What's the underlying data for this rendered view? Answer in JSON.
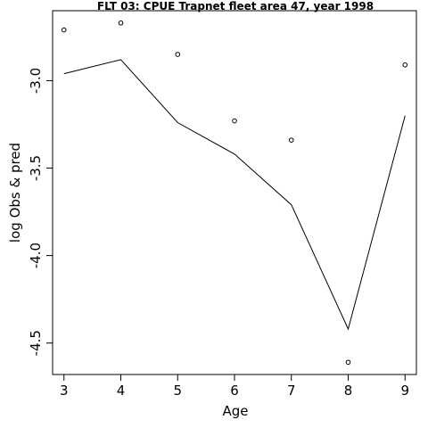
{
  "chart_data": {
    "type": "line",
    "title": "FLT 03: CPUE Trapnet fleet area 47, year 1998",
    "xlabel": "Age",
    "ylabel": "log Obs & pred",
    "xlim": [
      2.8,
      9.2
    ],
    "ylim": [
      -4.68,
      -2.6
    ],
    "x_ticks": [
      "3",
      "4",
      "5",
      "6",
      "7",
      "8",
      "9"
    ],
    "y_ticks": [
      "-3.0",
      "-3.5",
      "-4.0",
      "-4.5"
    ],
    "grid": false,
    "series": [
      {
        "style": "points",
        "x": [
          3,
          4,
          5,
          6,
          7,
          8,
          9
        ],
        "y": [
          -2.71,
          -2.67,
          -2.85,
          -3.23,
          -3.34,
          -4.61,
          -2.91
        ]
      },
      {
        "style": "line",
        "x": [
          3,
          4,
          5,
          6,
          7,
          8,
          9
        ],
        "y": [
          -2.96,
          -2.88,
          -3.24,
          -3.42,
          -3.71,
          -4.42,
          -3.2
        ]
      }
    ]
  }
}
